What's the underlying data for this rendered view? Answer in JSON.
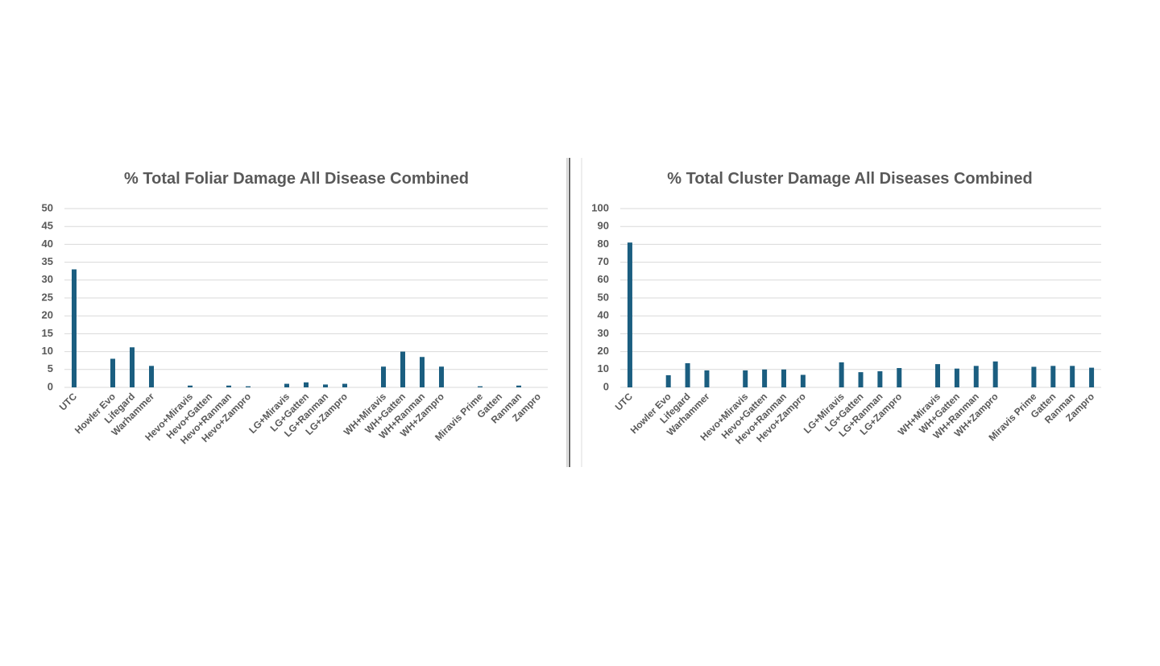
{
  "chart_data": [
    {
      "type": "bar",
      "title": "% Total Foliar Damage All Disease Combined",
      "categories": [
        "UTC",
        null,
        "Howler Evo",
        "Lifegard",
        "Warhammer",
        null,
        "Hevo+Miravis",
        "Hevo+Gatten",
        "Hevo+Ranman",
        "Hevo+Zampro",
        null,
        "LG+Miravis",
        "LG+Gatten",
        "LG+Ranman",
        "LG+Zampro",
        null,
        "WH+Miravis",
        "WH+Gatten",
        "WH+Ranman",
        "WH+Zampro",
        null,
        "Miravis Prime",
        "Gatten",
        "Ranman",
        "Zampro"
      ],
      "values": [
        33,
        null,
        8,
        11.2,
        6,
        null,
        0.5,
        0,
        0.5,
        0.3,
        null,
        1,
        1.4,
        0.8,
        1,
        null,
        5.8,
        10,
        8.5,
        5.8,
        null,
        0.3,
        0,
        0.5,
        0
      ],
      "color": "#1b5e80",
      "ylim": [
        0,
        50
      ],
      "yticks": [
        0,
        5,
        10,
        15,
        20,
        25,
        30,
        35,
        40,
        45,
        50
      ],
      "grid": true
    },
    {
      "type": "bar",
      "title": "% Total Cluster Damage All Diseases Combined",
      "categories": [
        "UTC",
        null,
        "Howler Evo",
        "Lifegard",
        "Warhammer",
        null,
        "Hevo+Miravis",
        "Hevo+Gatten",
        "Hevo+Ranman",
        "Hevo+Zampro",
        null,
        "LG+Miravis",
        "LG+Gatten",
        "LG+Ranman",
        "LG+Zampro",
        null,
        "WH+Miravis",
        "WH+Gatten",
        "WH+Ranman",
        "WH+Zampro",
        null,
        "Miravis Prime",
        "Gatten",
        "Ranman",
        "Zampro"
      ],
      "values": [
        81,
        null,
        6.8,
        13.5,
        9.5,
        null,
        9.5,
        10,
        10,
        7,
        null,
        14,
        8.5,
        9,
        10.8,
        null,
        13,
        10.5,
        12,
        14.5,
        null,
        11.5,
        12,
        12,
        11
      ],
      "color": "#1b5e80",
      "ylim": [
        0,
        100
      ],
      "yticks": [
        0,
        10,
        20,
        30,
        40,
        50,
        60,
        70,
        80,
        90,
        100
      ],
      "grid": true
    }
  ]
}
